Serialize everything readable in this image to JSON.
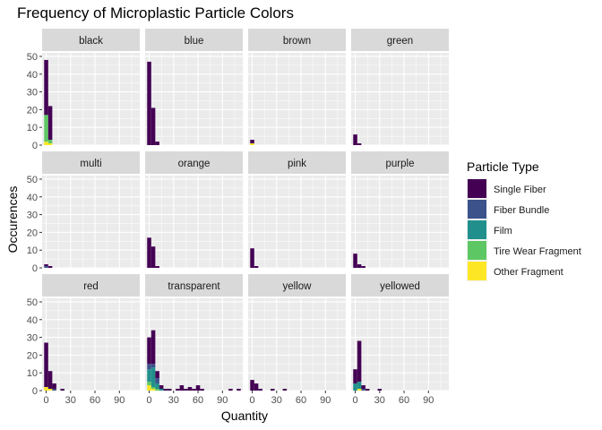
{
  "chart_data": {
    "type": "bar",
    "subtype": "faceted stacked histogram",
    "title": "Frequency of Microplastic Particle Colors",
    "xlabel": "Quantity",
    "ylabel": "Occurences",
    "xlim": [
      -5,
      115
    ],
    "ylim": [
      0,
      52
    ],
    "x_ticks": [
      0,
      30,
      60,
      90
    ],
    "y_ticks": [
      0,
      10,
      20,
      30,
      40,
      50
    ],
    "bin_width": 5,
    "grid": true,
    "legend": {
      "title": "Particle Type",
      "position": "right",
      "items": [
        {
          "name": "Single Fiber",
          "color": "#440154"
        },
        {
          "name": "Fiber Bundle",
          "color": "#3B528B"
        },
        {
          "name": "Film",
          "color": "#21908C"
        },
        {
          "name": "Tire Wear Fragment",
          "color": "#5DC863"
        },
        {
          "name": "Other Fragment",
          "color": "#FDE725"
        }
      ]
    },
    "facets": [
      {
        "label": "black",
        "bins": [
          {
            "x": 0,
            "stack": [
              31,
              0,
              0,
              15,
              2
            ]
          },
          {
            "x": 5,
            "stack": [
              19,
              0,
              0,
              2,
              1
            ]
          },
          {
            "x": 10,
            "stack": [
              0,
              0,
              0,
              0,
              0
            ]
          }
        ]
      },
      {
        "label": "blue",
        "bins": [
          {
            "x": 0,
            "stack": [
              47,
              0,
              0,
              0,
              0
            ]
          },
          {
            "x": 5,
            "stack": [
              21,
              0,
              0,
              0,
              0
            ]
          },
          {
            "x": 10,
            "stack": [
              2,
              0,
              0,
              0,
              0
            ]
          }
        ]
      },
      {
        "label": "brown",
        "bins": [
          {
            "x": 0,
            "stack": [
              2,
              0,
              0,
              0,
              1
            ]
          }
        ]
      },
      {
        "label": "green",
        "bins": [
          {
            "x": 0,
            "stack": [
              6,
              0,
              0,
              0,
              0
            ]
          },
          {
            "x": 5,
            "stack": [
              1,
              0,
              0,
              0,
              0
            ]
          }
        ]
      },
      {
        "label": "multi",
        "bins": [
          {
            "x": 0,
            "stack": [
              1,
              1,
              0,
              0,
              0
            ]
          },
          {
            "x": 5,
            "stack": [
              1,
              0,
              0,
              0,
              0
            ]
          }
        ]
      },
      {
        "label": "orange",
        "bins": [
          {
            "x": 0,
            "stack": [
              17,
              0,
              0,
              0,
              0
            ]
          },
          {
            "x": 5,
            "stack": [
              12,
              0,
              0,
              0,
              0
            ]
          },
          {
            "x": 10,
            "stack": [
              1,
              0,
              0,
              0,
              0
            ]
          }
        ]
      },
      {
        "label": "pink",
        "bins": [
          {
            "x": 0,
            "stack": [
              11,
              0,
              0,
              0,
              0
            ]
          },
          {
            "x": 5,
            "stack": [
              1,
              0,
              0,
              0,
              0
            ]
          }
        ]
      },
      {
        "label": "purple",
        "bins": [
          {
            "x": 0,
            "stack": [
              8,
              0,
              0,
              0,
              0
            ]
          },
          {
            "x": 5,
            "stack": [
              2,
              0,
              0,
              0,
              0
            ]
          },
          {
            "x": 10,
            "stack": [
              1,
              0,
              0,
              0,
              0
            ]
          }
        ]
      },
      {
        "label": "red",
        "bins": [
          {
            "x": 0,
            "stack": [
              25,
              0,
              0,
              0,
              2
            ]
          },
          {
            "x": 5,
            "stack": [
              10,
              0,
              0,
              0,
              1
            ]
          },
          {
            "x": 10,
            "stack": [
              3,
              1,
              0,
              0,
              0
            ]
          },
          {
            "x": 20,
            "stack": [
              1,
              0,
              0,
              0,
              0
            ]
          }
        ]
      },
      {
        "label": "transparent",
        "bins": [
          {
            "x": 0,
            "stack": [
              15,
              3,
              7,
              2,
              3
            ]
          },
          {
            "x": 5,
            "stack": [
              19,
              2,
              11,
              1,
              1
            ]
          },
          {
            "x": 10,
            "stack": [
              4,
              3,
              3,
              1,
              0
            ]
          },
          {
            "x": 15,
            "stack": [
              2,
              0,
              1,
              0,
              0
            ]
          },
          {
            "x": 20,
            "stack": [
              1,
              0,
              0,
              0,
              0
            ]
          },
          {
            "x": 25,
            "stack": [
              1,
              0,
              0,
              0,
              0
            ]
          },
          {
            "x": 35,
            "stack": [
              1,
              0,
              0,
              0,
              0
            ]
          },
          {
            "x": 40,
            "stack": [
              3,
              0,
              0,
              0,
              0
            ]
          },
          {
            "x": 45,
            "stack": [
              1,
              0,
              0,
              0,
              0
            ]
          },
          {
            "x": 50,
            "stack": [
              2,
              0,
              0,
              0,
              0
            ]
          },
          {
            "x": 55,
            "stack": [
              1,
              0,
              0,
              0,
              0
            ]
          },
          {
            "x": 60,
            "stack": [
              3,
              0,
              0,
              0,
              0
            ]
          },
          {
            "x": 65,
            "stack": [
              1,
              0,
              0,
              0,
              0
            ]
          },
          {
            "x": 100,
            "stack": [
              1,
              0,
              0,
              0,
              0
            ]
          },
          {
            "x": 110,
            "stack": [
              1,
              0,
              0,
              0,
              0
            ]
          }
        ]
      },
      {
        "label": "yellow",
        "bins": [
          {
            "x": 0,
            "stack": [
              6,
              0,
              0,
              0,
              0
            ]
          },
          {
            "x": 5,
            "stack": [
              4,
              0,
              0,
              0,
              0
            ]
          },
          {
            "x": 10,
            "stack": [
              1,
              0,
              0,
              0,
              0
            ]
          },
          {
            "x": 25,
            "stack": [
              1,
              0,
              0,
              0,
              0
            ]
          },
          {
            "x": 40,
            "stack": [
              1,
              0,
              0,
              0,
              0
            ]
          }
        ]
      },
      {
        "label": "yellowed",
        "bins": [
          {
            "x": 0,
            "stack": [
              8,
              0,
              4,
              0,
              0
            ]
          },
          {
            "x": 5,
            "stack": [
              23,
              0,
              4,
              0,
              1
            ]
          },
          {
            "x": 10,
            "stack": [
              2,
              1,
              0,
              0,
              0
            ]
          },
          {
            "x": 15,
            "stack": [
              1,
              0,
              0,
              0,
              0
            ]
          },
          {
            "x": 30,
            "stack": [
              1,
              0,
              0,
              0,
              0
            ]
          }
        ]
      }
    ]
  }
}
